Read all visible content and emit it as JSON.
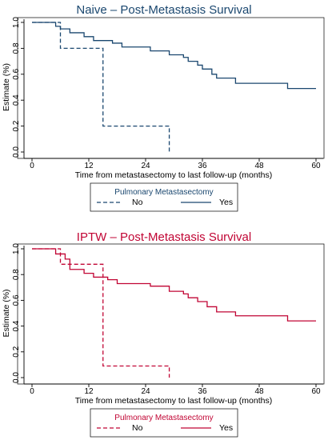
{
  "chart_data": [
    {
      "type": "line",
      "title": "Naive – Post-Metastasis Survival",
      "xlabel": "Time from metastasectomy to last follow-up (months)",
      "ylabel": "Estimate (%)",
      "xlim": [
        0,
        60
      ],
      "ylim": [
        0,
        1
      ],
      "x_ticks": [
        "0",
        "12",
        "24",
        "36",
        "48",
        "60"
      ],
      "y_ticks": [
        "0.0",
        "0.2",
        "0.4",
        "0.6",
        "0.8",
        "1.0"
      ],
      "grid": false,
      "color": "#1a476f",
      "legend": {
        "title": "Pulmonary Metastasectomy",
        "entries": [
          "No",
          "Yes"
        ],
        "placement": "bottom"
      },
      "series": [
        {
          "name": "No",
          "style": "dashed",
          "steps": [
            [
              0,
              1.0
            ],
            [
              6,
              0.8
            ],
            [
              15,
              0.2
            ],
            [
              29,
              0.0
            ]
          ]
        },
        {
          "name": "Yes",
          "style": "solid",
          "steps": [
            [
              0,
              1.0
            ],
            [
              5,
              0.97
            ],
            [
              6,
              0.95
            ],
            [
              8,
              0.92
            ],
            [
              11,
              0.89
            ],
            [
              13,
              0.86
            ],
            [
              17,
              0.84
            ],
            [
              19,
              0.81
            ],
            [
              25,
              0.78
            ],
            [
              29,
              0.75
            ],
            [
              32,
              0.73
            ],
            [
              33,
              0.7
            ],
            [
              35,
              0.67
            ],
            [
              36,
              0.64
            ],
            [
              38,
              0.6
            ],
            [
              39,
              0.57
            ],
            [
              43,
              0.53
            ],
            [
              54,
              0.49
            ],
            [
              60,
              0.49
            ]
          ]
        }
      ]
    },
    {
      "type": "line",
      "title": "IPTW – Post-Metastasis Survival",
      "xlabel": "Time from metastasectomy to last follow-up (months)",
      "ylabel": "Estimate (%)",
      "xlim": [
        0,
        60
      ],
      "ylim": [
        0,
        1
      ],
      "x_ticks": [
        "0",
        "12",
        "24",
        "36",
        "48",
        "60"
      ],
      "y_ticks": [
        "0.0",
        "0.2",
        "0.4",
        "0.6",
        "0.8",
        "1.0"
      ],
      "grid": false,
      "color": "#c10534",
      "legend": {
        "title": "Pulmonary Metastasectomy",
        "entries": [
          "No",
          "Yes"
        ],
        "placement": "bottom"
      },
      "series": [
        {
          "name": "No",
          "style": "dashed",
          "steps": [
            [
              0,
              1.0
            ],
            [
              6,
              0.88
            ],
            [
              15,
              0.09
            ],
            [
              29,
              0.0
            ]
          ]
        },
        {
          "name": "Yes",
          "style": "solid",
          "steps": [
            [
              0,
              1.0
            ],
            [
              5,
              0.96
            ],
            [
              7,
              0.92
            ],
            [
              8,
              0.84
            ],
            [
              11,
              0.81
            ],
            [
              13,
              0.78
            ],
            [
              16,
              0.76
            ],
            [
              18,
              0.73
            ],
            [
              25,
              0.71
            ],
            [
              29,
              0.67
            ],
            [
              32,
              0.65
            ],
            [
              33,
              0.62
            ],
            [
              35,
              0.59
            ],
            [
              37,
              0.55
            ],
            [
              39,
              0.51
            ],
            [
              43,
              0.48
            ],
            [
              54,
              0.44
            ],
            [
              60,
              0.44
            ]
          ]
        }
      ]
    }
  ]
}
